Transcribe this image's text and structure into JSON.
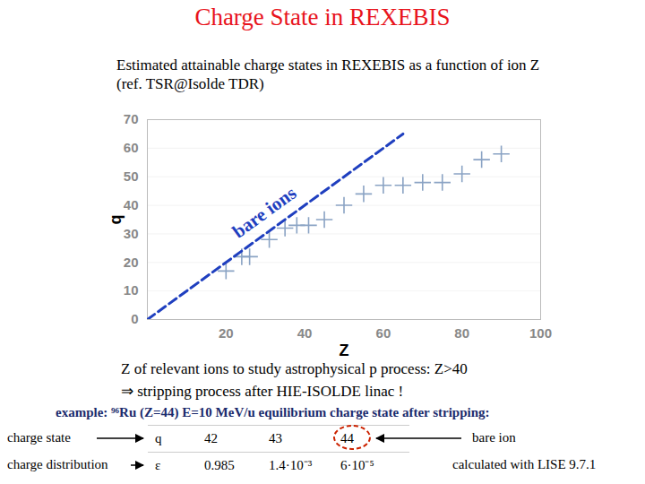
{
  "chart_data": {
    "type": "scatter",
    "title": "Charge State in REXEBIS",
    "subtitle": [
      "Estimated attainable charge states in REXEBIS as a function of ion Z",
      "(ref. TSR@Isolde TDR)"
    ],
    "x_label": "Z",
    "y_label": "q",
    "xlim": [
      0,
      100
    ],
    "xticks": [
      20,
      40,
      60,
      80,
      100
    ],
    "ylim": [
      0,
      70
    ],
    "yticks": [
      0,
      10,
      20,
      30,
      40,
      50,
      60,
      70
    ],
    "grid": true,
    "series": [
      {
        "type": "scatter",
        "marker": "plus",
        "color": "#8aa3c4",
        "x": [
          20,
          24,
          26,
          31,
          35,
          38,
          41,
          45,
          50,
          55,
          60,
          65,
          70,
          75,
          80,
          85,
          90
        ],
        "values": [
          17,
          22,
          22,
          28,
          32,
          33,
          33,
          35,
          40,
          44,
          47,
          47,
          48,
          48,
          51,
          56,
          58
        ]
      },
      {
        "name": "bare ions",
        "type": "line",
        "line_style": "dashed",
        "color": "#1f3fbf",
        "x": [
          0,
          65
        ],
        "values": [
          0,
          65
        ]
      }
    ]
  },
  "notes": [
    "Z of relevant ions to study astrophysical p process: Z>40",
    "⇒  stripping process after HIE-ISOLDE linac !"
  ],
  "example": "example:  ⁹⁶Ru  (Z=44)  E=10 MeV/u  equilibrium charge state after stripping:",
  "table": {
    "rows": [
      {
        "label": "charge state",
        "symbol": "q",
        "values": [
          42,
          43,
          44
        ],
        "note": "bare ion"
      },
      {
        "label": "charge distribution",
        "symbol": "ε",
        "values": [
          0.985,
          {
            "value": 0.0014,
            "label": "1.4·10⁻³"
          },
          {
            "value": 6e-05,
            "label": "6·10⁻⁵"
          }
        ],
        "note": "calculated with LISE 9.7.1"
      }
    ]
  }
}
